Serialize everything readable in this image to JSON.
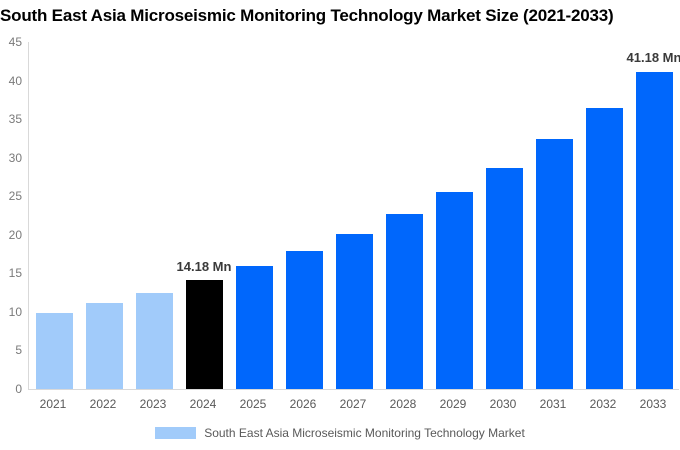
{
  "title": "South East Asia Microseismic Monitoring Technology Market Size (2021-2033)",
  "legend": {
    "label": "South East Asia Microseismic Monitoring Technology Market",
    "swatch_color": "#A1CBFA"
  },
  "colors": {
    "historical_bar": "#A1CBFA",
    "base_year_bar": "#000000",
    "forecast_bar": "#0067FC",
    "axis_line": "#D9D9D9",
    "y_tick_label": "#7A7A7A",
    "x_tick_label": "#595959",
    "annotation_text": "#3A3A3A",
    "title_text": "#000000"
  },
  "chart_data": {
    "type": "bar",
    "title": "South East Asia Microseismic Monitoring Technology Market Size (2021-2033)",
    "xlabel": "",
    "ylabel": "",
    "unit": "Mn",
    "categories": [
      "2021",
      "2022",
      "2023",
      "2024",
      "2025",
      "2026",
      "2027",
      "2028",
      "2029",
      "2030",
      "2031",
      "2032",
      "2033"
    ],
    "values": [
      9.8,
      11.1,
      12.5,
      14.18,
      15.9,
      17.9,
      20.1,
      22.7,
      25.5,
      28.7,
      32.4,
      36.4,
      41.18
    ],
    "bar_colors": [
      "#A1CBFA",
      "#A1CBFA",
      "#A1CBFA",
      "#000000",
      "#0067FC",
      "#0067FC",
      "#0067FC",
      "#0067FC",
      "#0067FC",
      "#0067FC",
      "#0067FC",
      "#0067FC",
      "#0067FC"
    ],
    "bar_roles": [
      "historical",
      "historical",
      "historical",
      "base_year",
      "forecast",
      "forecast",
      "forecast",
      "forecast",
      "forecast",
      "forecast",
      "forecast",
      "forecast",
      "forecast"
    ],
    "ylim": [
      0,
      45
    ],
    "y_ticks": [
      0,
      5,
      10,
      15,
      20,
      25,
      30,
      35,
      40,
      45
    ],
    "grid": "off",
    "legend_position": "bottom",
    "legend_entries": [
      "South East Asia Microseismic Monitoring Technology Market"
    ],
    "annotations": [
      {
        "category": "2024",
        "text": "14.18 Mn"
      },
      {
        "category": "2033",
        "text": "41.18 Mn"
      }
    ]
  }
}
